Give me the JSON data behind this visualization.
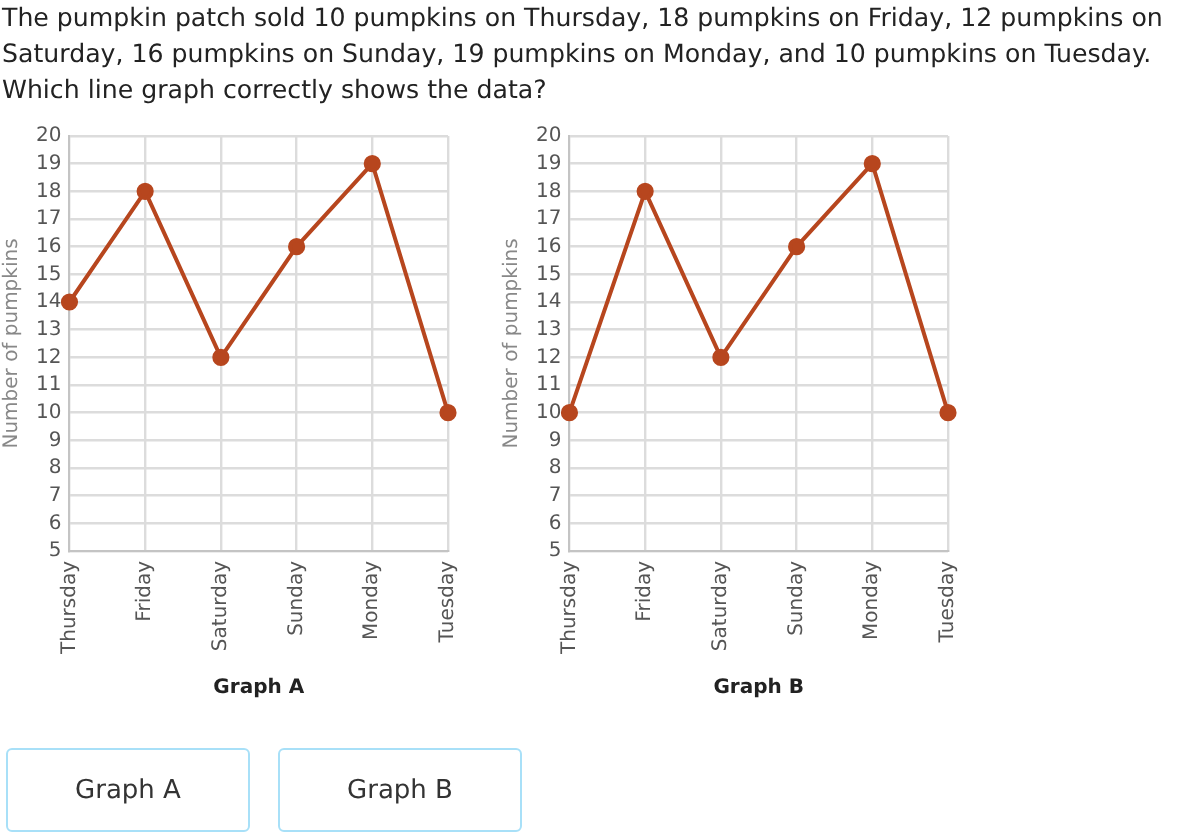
{
  "chart_data": [
    {
      "type": "other",
      "title": "The pumpkin patch sold 10 pumpkins on Thursday, 18 pumpkins on Friday, 12 pumpkins on Saturday, 16 pumpkins on Sunday, 19 pumpkins on Monday, and 10 pumpkins on Tuesday. Which line graph correctly shows the data?"
    },
    {
      "type": "line",
      "xlabel": "Graph A",
      "ylabel": "Number of pumpkins",
      "categories": [
        "Thursday",
        "Friday",
        "Saturday",
        "Sunday",
        "Monday",
        "Tuesday"
      ],
      "values": [
        14,
        18,
        12,
        16,
        19,
        10
      ],
      "color": "#b7461e",
      "ylim": [
        5,
        20
      ],
      "yticks": [
        5,
        6,
        7,
        8,
        9,
        10,
        11,
        12,
        13,
        14,
        15,
        16,
        17,
        18,
        19,
        20
      ],
      "grid": true,
      "marker": "circle",
      "line_style": "solid"
    },
    {
      "type": "line",
      "xlabel": "Graph B",
      "ylabel": "Number of pumpkins",
      "categories": [
        "Thursday",
        "Friday",
        "Saturday",
        "Sunday",
        "Monday",
        "Tuesday"
      ],
      "values": [
        10,
        18,
        12,
        16,
        19,
        10
      ],
      "color": "#b7461e",
      "ylim": [
        5,
        20
      ],
      "yticks": [
        5,
        6,
        7,
        8,
        9,
        10,
        11,
        12,
        13,
        14,
        15,
        16,
        17,
        18,
        19,
        20
      ],
      "grid": true,
      "marker": "circle",
      "line_style": "solid"
    },
    {
      "type": "other",
      "annotations": [
        "Graph A",
        "Graph B"
      ]
    }
  ]
}
